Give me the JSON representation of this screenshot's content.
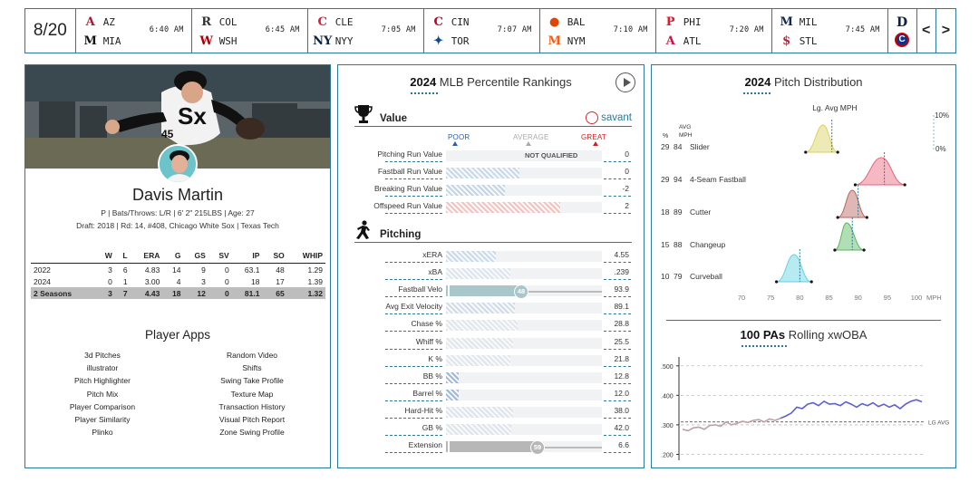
{
  "scoreboard": {
    "date": "8/20",
    "games": [
      {
        "away": "AZ",
        "home": "MIA",
        "time": "6:40 AM",
        "away_logo": "A",
        "home_logo": "M",
        "away_color": "#a71930",
        "home_color": "#111111"
      },
      {
        "away": "COL",
        "home": "WSH",
        "time": "6:45 AM",
        "away_logo": "R",
        "home_logo": "W",
        "away_color": "#333333",
        "home_color": "#ab0003"
      },
      {
        "away": "CLE",
        "home": "NYY",
        "time": "7:05 AM",
        "away_logo": "C",
        "home_logo": "NY",
        "away_color": "#e31937",
        "home_color": "#0c2340"
      },
      {
        "away": "CIN",
        "home": "TOR",
        "time": "7:07 AM",
        "away_logo": "C",
        "home_logo": "✦",
        "away_color": "#c6011f",
        "home_color": "#134a8e"
      },
      {
        "away": "BAL",
        "home": "NYM",
        "time": "7:10 AM",
        "away_logo": "●",
        "home_logo": "M",
        "away_color": "#df4601",
        "home_color": "#ff5910"
      },
      {
        "away": "PHI",
        "home": "ATL",
        "time": "7:20 AM",
        "away_logo": "P",
        "home_logo": "A",
        "away_color": "#e81828",
        "home_color": "#ce1141"
      },
      {
        "away": "MIL",
        "home": "STL",
        "time": "7:45 AM",
        "away_logo": "M",
        "home_logo": "$",
        "away_color": "#12284b",
        "home_color": "#c41e3a"
      }
    ],
    "end_logos": [
      {
        "logo": "D",
        "color": "#0c2340"
      },
      {
        "logo": "C",
        "color": "#0e3386"
      }
    ],
    "prev_label": "<",
    "next_label": ">"
  },
  "player": {
    "name": "Davis Martin",
    "info_line1": "P | Bats/Throws: L/R | 6' 2\" 215LBS | Age: 27",
    "info_line2": "Draft: 2018 | Rd: 14, #408, Chicago White Sox | Texas Tech",
    "stats_headers": [
      "",
      "W",
      "L",
      "ERA",
      "G",
      "GS",
      "SV",
      "IP",
      "SO",
      "WHIP"
    ],
    "stats_rows": [
      [
        "2022",
        "3",
        "6",
        "4.83",
        "14",
        "9",
        "0",
        "63.1",
        "48",
        "1.29"
      ],
      [
        "2024",
        "0",
        "1",
        "3.00",
        "4",
        "3",
        "0",
        "18",
        "17",
        "1.39"
      ],
      [
        "2 Seasons",
        "3",
        "7",
        "4.43",
        "18",
        "12",
        "0",
        "81.1",
        "65",
        "1.32"
      ]
    ],
    "apps_title": "Player Apps",
    "apps_col1": [
      "3d Pitches",
      "illustrator",
      "Pitch Highlighter",
      "Pitch Mix",
      "Player Comparison",
      "Player Similarity",
      "Plinko"
    ],
    "apps_col2": [
      "Random Video",
      "Shifts",
      "Swing Take Profile",
      "Texture Map",
      "Transaction History",
      "Visual Pitch Report",
      "Zone Swing Profile"
    ]
  },
  "rankings": {
    "title_year": "2024",
    "title_rest": " MLB Percentile Rankings",
    "value_label": "Value",
    "savant_label": "savant",
    "scale": {
      "poor": "POOR",
      "average": "AVERAGE",
      "great": "GREAT"
    },
    "not_qualified": "NOT QUALIFIED",
    "value_rows": [
      {
        "label": "Pitching Run Value",
        "value": "0",
        "pct": 0,
        "color": "#e6e8ea"
      },
      {
        "label": "Fastball Run Value",
        "value": "0",
        "pct": 0.47,
        "color": "#c6d9e8"
      },
      {
        "label": "Breaking Run Value",
        "value": "-2",
        "pct": 0.38,
        "color": "#c2d4e6"
      },
      {
        "label": "Offspeed Run Value",
        "value": "2",
        "pct": 0.73,
        "color": "#f2c2c0"
      }
    ],
    "pitching_label": "Pitching",
    "pitching_rows": [
      {
        "label": "xERA",
        "value": "4.55",
        "pct": 0.32,
        "color": "#c9d9ec",
        "badge": ""
      },
      {
        "label": "xBA",
        "value": ".239",
        "pct": 0.41,
        "color": "#dce5ee",
        "badge": ""
      },
      {
        "label": "Fastball Velo",
        "value": "93.9",
        "pct": 0.48,
        "color": "#a9c7cb",
        "badge": "48"
      },
      {
        "label": "Avg Exit Velocity",
        "value": "89.1",
        "pct": 0.44,
        "color": "#cfdbe8",
        "badge": ""
      },
      {
        "label": "Chase %",
        "value": "28.8",
        "pct": 0.46,
        "color": "#e0e6ec",
        "badge": ""
      },
      {
        "label": "Whiff %",
        "value": "25.5",
        "pct": 0.43,
        "color": "#e0e6ec",
        "badge": ""
      },
      {
        "label": "K %",
        "value": "21.8",
        "pct": 0.41,
        "color": "#e0e6ec",
        "badge": ""
      },
      {
        "label": "BB %",
        "value": "12.8",
        "pct": 0.08,
        "color": "#9eb7de",
        "badge": ""
      },
      {
        "label": "Barrel %",
        "value": "12.0",
        "pct": 0.08,
        "color": "#9eb7de",
        "badge": ""
      },
      {
        "label": "Hard-Hit %",
        "value": "38.0",
        "pct": 0.43,
        "color": "#dde4ec",
        "badge": ""
      },
      {
        "label": "GB %",
        "value": "42.0",
        "pct": 0.42,
        "color": "#dde4ec",
        "badge": ""
      },
      {
        "label": "Extension",
        "value": "6.6",
        "pct": 0.59,
        "color": "#b7b7b7",
        "badge": "59"
      }
    ]
  },
  "pitch_dist": {
    "title_year": "2024",
    "title_rest": " Pitch Distribution",
    "lg_label": "Lg. Avg MPH",
    "col_pct": "%",
    "col_avg": "AVG",
    "col_mph": "MPH",
    "right_top": "10%",
    "right_bottom": "0%",
    "x_ticks": [
      "70",
      "75",
      "80",
      "85",
      "90",
      "95",
      "100"
    ],
    "x_unit": "MPH",
    "chart_data": {
      "type": "area",
      "xlim": [
        70,
        100
      ],
      "pitches": [
        {
          "pct": "29",
          "avg": "84",
          "name": "Slider",
          "mean": 84,
          "lo": 81,
          "hi": 86.5,
          "lg": 85.5,
          "color": "#d9d15c"
        },
        {
          "pct": "29",
          "avg": "94",
          "name": "4-Seam Fastball",
          "mean": 94,
          "lo": 89.5,
          "hi": 98,
          "lg": 94.5,
          "color": "#e8637a"
        },
        {
          "pct": "18",
          "avg": "89",
          "name": "Cutter",
          "mean": 89,
          "lo": 86.5,
          "hi": 91.5,
          "lg": 90,
          "color": "#b9625a"
        },
        {
          "pct": "15",
          "avg": "88",
          "name": "Changeup",
          "mean": 88,
          "lo": 86,
          "hi": 91,
          "lg": 89,
          "color": "#55b65c"
        },
        {
          "pct": "10",
          "avg": "79",
          "name": "Curveball",
          "mean": 79,
          "lo": 76,
          "hi": 82,
          "lg": 80,
          "color": "#5fd3e0"
        }
      ]
    }
  },
  "rolling": {
    "title_bold": "100 PAs",
    "title_rest": " Rolling xwOBA",
    "lg_label": "LG AVG",
    "y_ticks": [
      ".500",
      ".400",
      ".300",
      ".200"
    ],
    "chart_data": {
      "type": "line",
      "ylim": [
        0.18,
        0.53
      ],
      "y_ticks": [
        0.5,
        0.4,
        0.3,
        0.2
      ],
      "lg_avg": 0.31,
      "series": [
        {
          "values": [
            0.285,
            0.28,
            0.29,
            0.292,
            0.285,
            0.298,
            0.3,
            0.295,
            0.31,
            0.3,
            0.305,
            0.312,
            0.308,
            0.315,
            0.318,
            0.31,
            0.32,
            0.315,
            0.322
          ],
          "color": "#bfa0a5"
        },
        {
          "values": [
            0.322,
            0.33,
            0.34,
            0.36,
            0.355,
            0.37,
            0.375,
            0.365,
            0.38,
            0.37,
            0.372,
            0.365,
            0.378,
            0.37,
            0.36,
            0.372,
            0.365,
            0.375,
            0.362,
            0.37,
            0.36,
            0.368,
            0.355,
            0.37,
            0.38,
            0.385,
            0.378
          ],
          "color": "#5a5fd6"
        }
      ]
    }
  }
}
